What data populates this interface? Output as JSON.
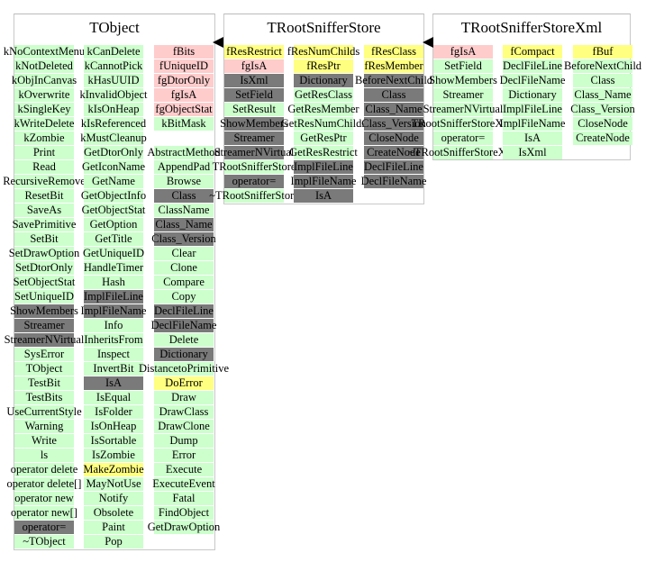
{
  "colors": {
    "public": "#ccffcc",
    "data_private": "#ffcccc",
    "data_protected": "#ffff80",
    "inherited": "#7a7a7a"
  },
  "classes": [
    {
      "name": "TObject",
      "columns": [
        [
          [
            "kNoContextMenu",
            "public"
          ],
          [
            "kNotDeleted",
            "public"
          ],
          [
            "kObjInCanvas",
            "public"
          ],
          [
            "kOverwrite",
            "public"
          ],
          [
            "kSingleKey",
            "public"
          ],
          [
            "kWriteDelete",
            "public"
          ],
          [
            "kZombie",
            "public"
          ],
          [
            "Print",
            "public"
          ],
          [
            "Read",
            "public"
          ],
          [
            "RecursiveRemove",
            "public"
          ],
          [
            "ResetBit",
            "public"
          ],
          [
            "SaveAs",
            "public"
          ],
          [
            "SavePrimitive",
            "public"
          ],
          [
            "SetBit",
            "public"
          ],
          [
            "SetDrawOption",
            "public"
          ],
          [
            "SetDtorOnly",
            "public"
          ],
          [
            "SetObjectStat",
            "public"
          ],
          [
            "SetUniqueID",
            "public"
          ],
          [
            "ShowMembers",
            "inherited"
          ],
          [
            "Streamer",
            "inherited"
          ],
          [
            "StreamerNVirtual",
            "inherited"
          ],
          [
            "SysError",
            "public"
          ],
          [
            "TObject",
            "public"
          ],
          [
            "TestBit",
            "public"
          ],
          [
            "TestBits",
            "public"
          ],
          [
            "UseCurrentStyle",
            "public"
          ],
          [
            "Warning",
            "public"
          ],
          [
            "Write",
            "public"
          ],
          [
            "ls",
            "public"
          ],
          [
            "operator delete",
            "public"
          ],
          [
            "operator delete[]",
            "public"
          ],
          [
            "operator new",
            "public"
          ],
          [
            "operator new[]",
            "public"
          ],
          [
            "operator=",
            "inherited"
          ],
          [
            "~TObject",
            "public"
          ]
        ],
        [
          [
            "kCanDelete",
            "public"
          ],
          [
            "kCannotPick",
            "public"
          ],
          [
            "kHasUUID",
            "public"
          ],
          [
            "kInvalidObject",
            "public"
          ],
          [
            "kIsOnHeap",
            "public"
          ],
          [
            "kIsReferenced",
            "public"
          ],
          [
            "kMustCleanup",
            "public"
          ],
          [
            "GetDtorOnly",
            "public"
          ],
          [
            "GetIconName",
            "public"
          ],
          [
            "GetName",
            "public"
          ],
          [
            "GetObjectInfo",
            "public"
          ],
          [
            "GetObjectStat",
            "public"
          ],
          [
            "GetOption",
            "public"
          ],
          [
            "GetTitle",
            "public"
          ],
          [
            "GetUniqueID",
            "public"
          ],
          [
            "HandleTimer",
            "public"
          ],
          [
            "Hash",
            "public"
          ],
          [
            "ImplFileLine",
            "inherited"
          ],
          [
            "ImplFileName",
            "inherited"
          ],
          [
            "Info",
            "public"
          ],
          [
            "InheritsFrom",
            "public"
          ],
          [
            "Inspect",
            "public"
          ],
          [
            "InvertBit",
            "public"
          ],
          [
            "IsA",
            "inherited"
          ],
          [
            "IsEqual",
            "public"
          ],
          [
            "IsFolder",
            "public"
          ],
          [
            "IsOnHeap",
            "public"
          ],
          [
            "IsSortable",
            "public"
          ],
          [
            "IsZombie",
            "public"
          ],
          [
            "MakeZombie",
            "data_protected"
          ],
          [
            "MayNotUse",
            "public"
          ],
          [
            "Notify",
            "public"
          ],
          [
            "Obsolete",
            "public"
          ],
          [
            "Paint",
            "public"
          ],
          [
            "Pop",
            "public"
          ]
        ],
        [
          [
            "fBits",
            "data_private"
          ],
          [
            "fUniqueID",
            "data_private"
          ],
          [
            "fgDtorOnly",
            "data_private"
          ],
          [
            "fgIsA",
            "data_private"
          ],
          [
            "fgObjectStat",
            "data_private"
          ],
          [
            "kBitMask",
            "public"
          ],
          [
            "",
            ""
          ],
          [
            "AbstractMethod",
            "public"
          ],
          [
            "AppendPad",
            "public"
          ],
          [
            "Browse",
            "public"
          ],
          [
            "Class",
            "inherited"
          ],
          [
            "ClassName",
            "public"
          ],
          [
            "Class_Name",
            "inherited"
          ],
          [
            "Class_Version",
            "inherited"
          ],
          [
            "Clear",
            "public"
          ],
          [
            "Clone",
            "public"
          ],
          [
            "Compare",
            "public"
          ],
          [
            "Copy",
            "public"
          ],
          [
            "DeclFileLine",
            "inherited"
          ],
          [
            "DeclFileName",
            "inherited"
          ],
          [
            "Delete",
            "public"
          ],
          [
            "Dictionary",
            "inherited"
          ],
          [
            "DistancetoPrimitive",
            "public"
          ],
          [
            "DoError",
            "data_protected"
          ],
          [
            "Draw",
            "public"
          ],
          [
            "DrawClass",
            "public"
          ],
          [
            "DrawClone",
            "public"
          ],
          [
            "Dump",
            "public"
          ],
          [
            "Error",
            "public"
          ],
          [
            "Execute",
            "public"
          ],
          [
            "ExecuteEvent",
            "public"
          ],
          [
            "Fatal",
            "public"
          ],
          [
            "FindObject",
            "public"
          ],
          [
            "GetDrawOption",
            "public"
          ]
        ]
      ]
    },
    {
      "name": "TRootSnifferStore",
      "columns": [
        [
          [
            "fResRestrict",
            "data_protected"
          ],
          [
            "fgIsA",
            "data_private"
          ],
          [
            "IsXml",
            "inherited"
          ],
          [
            "SetField",
            "inherited"
          ],
          [
            "SetResult",
            "public"
          ],
          [
            "ShowMembers",
            "inherited"
          ],
          [
            "Streamer",
            "inherited"
          ],
          [
            "StreamerNVirtual",
            "inherited"
          ],
          [
            "TRootSnifferStore",
            "public"
          ],
          [
            "operator=",
            "inherited"
          ],
          [
            "~TRootSnifferStore",
            "public"
          ]
        ],
        [
          [
            "fResNumChilds",
            "data_protected"
          ],
          [
            "fResPtr",
            "data_protected"
          ],
          [
            "Dictionary",
            "inherited"
          ],
          [
            "GetResClass",
            "public"
          ],
          [
            "GetResMember",
            "public"
          ],
          [
            "GetResNumChilds",
            "public"
          ],
          [
            "GetResPtr",
            "public"
          ],
          [
            "GetResRestrict",
            "public"
          ],
          [
            "ImplFileLine",
            "inherited"
          ],
          [
            "ImplFileName",
            "inherited"
          ],
          [
            "IsA",
            "inherited"
          ]
        ],
        [
          [
            "fResClass",
            "data_protected"
          ],
          [
            "fResMember",
            "data_protected"
          ],
          [
            "BeforeNextChild",
            "inherited"
          ],
          [
            "Class",
            "inherited"
          ],
          [
            "Class_Name",
            "inherited"
          ],
          [
            "Class_Version",
            "inherited"
          ],
          [
            "CloseNode",
            "inherited"
          ],
          [
            "CreateNode",
            "inherited"
          ],
          [
            "DeclFileLine",
            "inherited"
          ],
          [
            "DeclFileName",
            "inherited"
          ]
        ]
      ]
    },
    {
      "name": "TRootSnifferStoreXml",
      "columns": [
        [
          [
            "fgIsA",
            "data_private"
          ],
          [
            "SetField",
            "public"
          ],
          [
            "ShowMembers",
            "public"
          ],
          [
            "Streamer",
            "public"
          ],
          [
            "StreamerNVirtual",
            "public"
          ],
          [
            "TRootSnifferStoreXml",
            "public"
          ],
          [
            "operator=",
            "public"
          ],
          [
            "~TRootSnifferStoreXml",
            "public"
          ]
        ],
        [
          [
            "fCompact",
            "data_protected"
          ],
          [
            "DeclFileLine",
            "public"
          ],
          [
            "DeclFileName",
            "public"
          ],
          [
            "Dictionary",
            "public"
          ],
          [
            "ImplFileLine",
            "public"
          ],
          [
            "ImplFileName",
            "public"
          ],
          [
            "IsA",
            "public"
          ],
          [
            "IsXml",
            "public"
          ]
        ],
        [
          [
            "fBuf",
            "data_protected"
          ],
          [
            "BeforeNextChild",
            "public"
          ],
          [
            "Class",
            "public"
          ],
          [
            "Class_Name",
            "public"
          ],
          [
            "Class_Version",
            "public"
          ],
          [
            "CloseNode",
            "public"
          ],
          [
            "CreateNode",
            "public"
          ]
        ]
      ]
    }
  ]
}
